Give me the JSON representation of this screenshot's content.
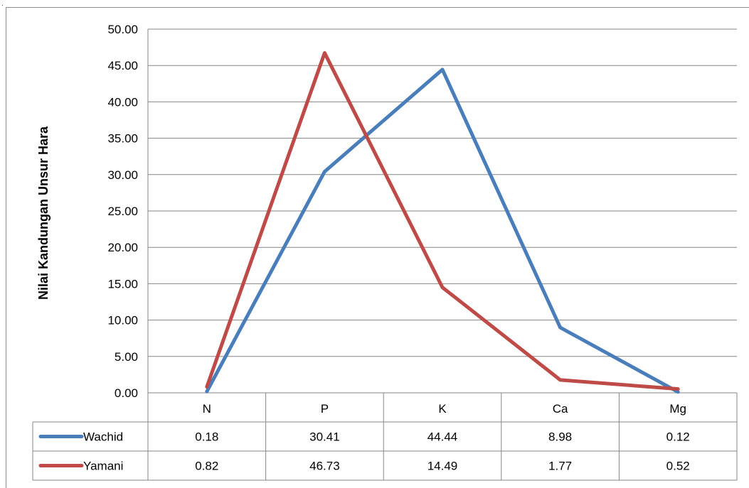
{
  "chart_data": {
    "type": "line",
    "title": "",
    "xlabel": "",
    "ylabel": "Nilai Kandungan Unsur Hara",
    "categories": [
      "N",
      "P",
      "K",
      "Ca",
      "Mg"
    ],
    "ylim": [
      0,
      50
    ],
    "ytick_step": 5,
    "yticks": [
      "0.00",
      "5.00",
      "10.00",
      "15.00",
      "20.00",
      "25.00",
      "30.00",
      "35.00",
      "40.00",
      "45.00",
      "50.00"
    ],
    "grid": true,
    "legend": "data-table",
    "series": [
      {
        "name": "Wachid",
        "color": "#4a7ebb",
        "values": [
          0.18,
          30.41,
          44.44,
          8.98,
          0.12
        ],
        "labels": [
          "0.18",
          "30.41",
          "44.44",
          "8.98",
          "0.12"
        ]
      },
      {
        "name": "Yamani",
        "color": "#be4b48",
        "values": [
          0.82,
          46.73,
          14.49,
          1.77,
          0.52
        ],
        "labels": [
          "0.82",
          "46.73",
          "14.49",
          "1.77",
          "0.52"
        ]
      }
    ]
  }
}
